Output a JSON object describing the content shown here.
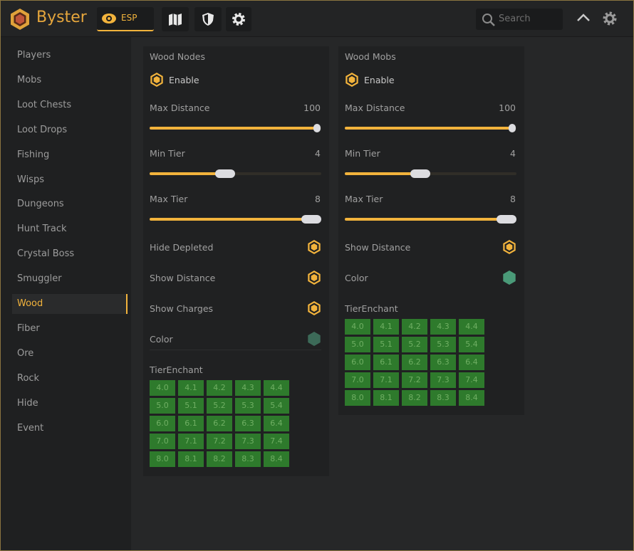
{
  "header": {
    "brand": "Byster",
    "tabs": [
      "ESP"
    ],
    "search_placeholder": "Search"
  },
  "sidebar": {
    "items": [
      "Players",
      "Mobs",
      "Loot Chests",
      "Loot Drops",
      "Fishing",
      "Wisps",
      "Dungeons",
      "Hunt Track",
      "Crystal Boss",
      "Smuggler",
      "Wood",
      "Fiber",
      "Ore",
      "Rock",
      "Hide",
      "Event"
    ],
    "active": 10
  },
  "panels": [
    {
      "title": "Wood Nodes",
      "enable": "Enable",
      "sliders": [
        {
          "label": "Max Distance",
          "value": 100
        },
        {
          "label": "Min Tier",
          "value": 4
        },
        {
          "label": "Max Tier",
          "value": 8
        }
      ],
      "toggles": [
        "Hide Depleted",
        "Show Distance",
        "Show Charges"
      ],
      "color_label": "Color",
      "tier_title": "TierEnchant",
      "tiers": [
        [
          "4.0",
          "4.1",
          "4.2",
          "4.3",
          "4.4"
        ],
        [
          "5.0",
          "5.1",
          "5.2",
          "5.3",
          "5.4"
        ],
        [
          "6.0",
          "6.1",
          "6.2",
          "6.3",
          "6.4"
        ],
        [
          "7.0",
          "7.1",
          "7.2",
          "7.3",
          "7.4"
        ],
        [
          "8.0",
          "8.1",
          "8.2",
          "8.3",
          "8.4"
        ]
      ]
    },
    {
      "title": "Wood Mobs",
      "enable": "Enable",
      "sliders": [
        {
          "label": "Max Distance",
          "value": 100
        },
        {
          "label": "Min Tier",
          "value": 4
        },
        {
          "label": "Max Tier",
          "value": 8
        }
      ],
      "toggles": [
        "Show Distance"
      ],
      "color_label": "Color",
      "tier_title": "TierEnchant",
      "tiers": [
        [
          "4.0",
          "4.1",
          "4.2",
          "4.3",
          "4.4"
        ],
        [
          "5.0",
          "5.1",
          "5.2",
          "5.3",
          "5.4"
        ],
        [
          "6.0",
          "6.1",
          "6.2",
          "6.3",
          "6.4"
        ],
        [
          "7.0",
          "7.1",
          "7.2",
          "7.3",
          "7.4"
        ],
        [
          "8.0",
          "8.1",
          "8.2",
          "8.3",
          "8.4"
        ]
      ]
    }
  ]
}
